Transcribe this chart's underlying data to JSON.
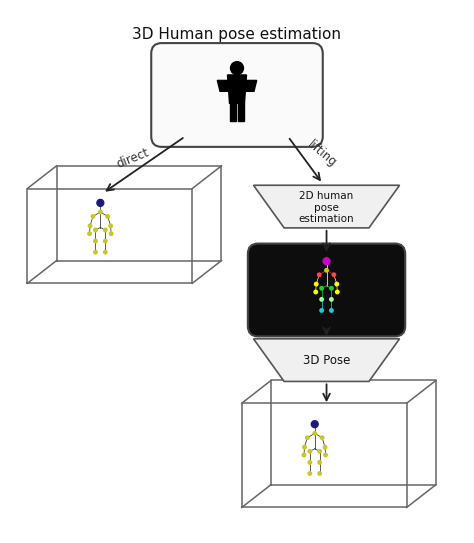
{
  "title": "3D Human pose estimation",
  "bg_color": "#ffffff",
  "border_color": "#444444",
  "arrow_color": "#222222",
  "label_direct": "direct",
  "label_lifting": "lifting",
  "label_2d": "2D human\npose\nestimation",
  "label_3d_pose": "3D Pose",
  "figure_size": [
    4.74,
    5.43
  ],
  "dpi": 100,
  "xlim": [
    0,
    10
  ],
  "ylim": [
    0,
    11.4
  ]
}
